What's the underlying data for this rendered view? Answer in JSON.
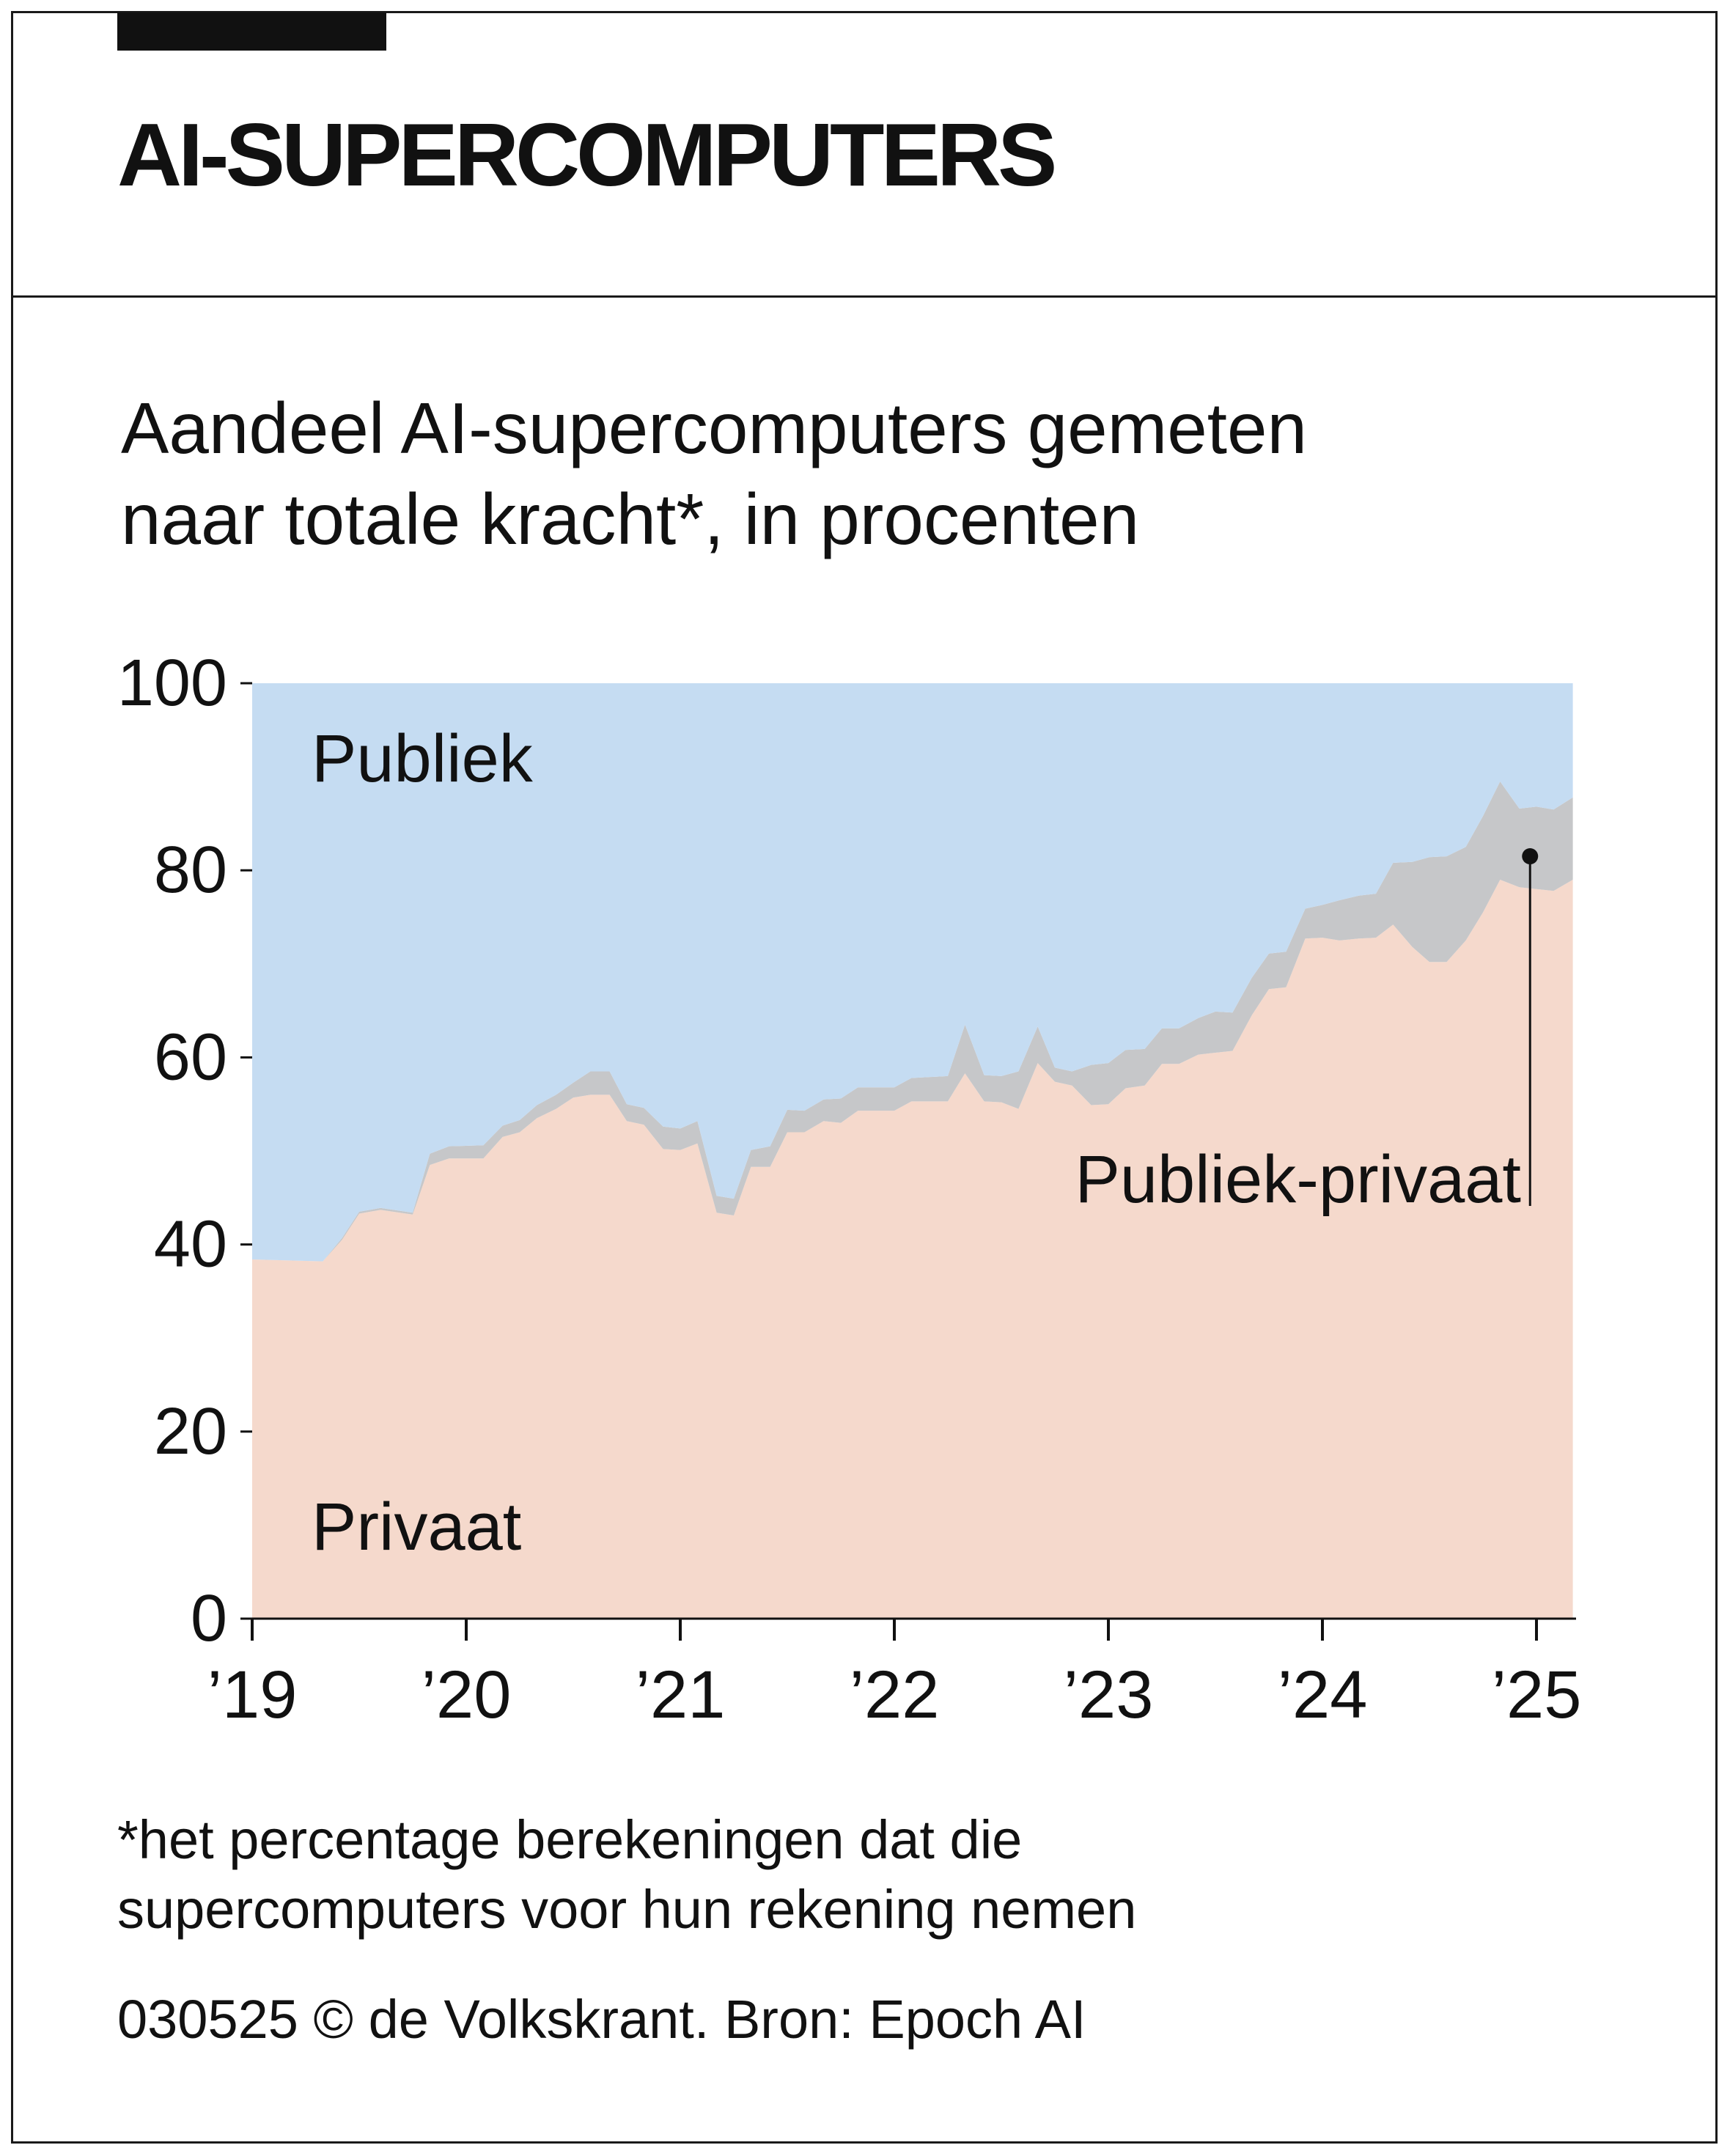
{
  "header": {
    "title": "AI-SUPERCOMPUTERS"
  },
  "subtitle": {
    "line1": "Aandeel AI-supercomputers gemeten",
    "line2": "naar totale kracht*, in procenten"
  },
  "footnote": {
    "line1": "*het percentage berekeningen dat die",
    "line2": "supercomputers voor hun rekening nemen"
  },
  "credit": "030525 © de Volkskrant. Bron: Epoch AI",
  "colors": {
    "publiek": "#c5dcf2",
    "publiek_privaat": "#c6c7c9",
    "privaat": "#f5d9cc",
    "text": "#111111"
  },
  "chart_data": {
    "type": "area",
    "stacked": true,
    "title": "Aandeel AI-supercomputers gemeten naar totale kracht*, in procenten",
    "ylim": [
      0,
      100
    ],
    "yticks": [
      0,
      20,
      40,
      60,
      80,
      100
    ],
    "xlim": [
      2019.0,
      2025.17
    ],
    "xticks": [
      {
        "value": 2019,
        "label": "’19"
      },
      {
        "value": 2020,
        "label": "’20"
      },
      {
        "value": 2021,
        "label": "’21"
      },
      {
        "value": 2022,
        "label": "’22"
      },
      {
        "value": 2023,
        "label": "’23"
      },
      {
        "value": 2024,
        "label": "’24"
      },
      {
        "value": 2025,
        "label": "’25"
      }
    ],
    "x": [
      2019.0,
      2019.33,
      2019.42,
      2019.5,
      2019.6,
      2019.75,
      2019.83,
      2019.92,
      2020.08,
      2020.17,
      2020.25,
      2020.33,
      2020.42,
      2020.5,
      2020.58,
      2020.67,
      2020.75,
      2020.83,
      2020.92,
      2021.0,
      2021.08,
      2021.17,
      2021.25,
      2021.33,
      2021.42,
      2021.5,
      2021.58,
      2021.67,
      2021.75,
      2021.83,
      2022.0,
      2022.08,
      2022.25,
      2022.33,
      2022.42,
      2022.5,
      2022.58,
      2022.67,
      2022.75,
      2022.83,
      2022.92,
      2023.0,
      2023.08,
      2023.17,
      2023.25,
      2023.33,
      2023.42,
      2023.5,
      2023.58,
      2023.67,
      2023.75,
      2023.83,
      2023.92,
      2024.0,
      2024.08,
      2024.17,
      2024.25,
      2024.33,
      2024.42,
      2024.5,
      2024.58,
      2024.67,
      2024.75,
      2024.83,
      2024.92,
      2025.0,
      2025.08,
      2025.17
    ],
    "series": [
      {
        "name": "Privaat",
        "color": "#f5d9cc",
        "values": [
          38.4,
          38.2,
          40.5,
          43.3,
          43.7,
          43.2,
          48.5,
          49.2,
          49.2,
          51.5,
          52.0,
          53.5,
          54.5,
          55.7,
          56.0,
          56.0,
          53.2,
          52.8,
          50.2,
          50.1,
          50.8,
          43.4,
          43.1,
          48.3,
          48.3,
          52.0,
          52.0,
          53.2,
          53.0,
          54.3,
          54.3,
          55.3,
          55.3,
          58.3,
          55.3,
          55.2,
          54.5,
          59.4,
          57.4,
          57.0,
          54.9,
          55.0,
          56.7,
          57.0,
          59.3,
          59.3,
          60.3,
          60.5,
          60.7,
          64.5,
          67.3,
          67.5,
          72.7,
          72.8,
          72.5,
          72.7,
          72.8,
          74.2,
          71.8,
          70.2,
          70.2,
          72.5,
          75.5,
          79.0,
          78.2,
          78.0,
          77.8,
          79.0
        ]
      },
      {
        "name": "Publiek-privaat",
        "color": "#c6c7c9",
        "values": [
          0.0,
          0.0,
          0.2,
          0.2,
          0.2,
          0.2,
          1.2,
          1.3,
          1.4,
          1.2,
          1.3,
          1.4,
          1.5,
          1.6,
          2.5,
          2.5,
          1.8,
          1.8,
          2.4,
          2.3,
          2.4,
          1.8,
          1.8,
          1.8,
          2.2,
          2.4,
          2.3,
          2.3,
          2.6,
          2.5,
          2.5,
          2.5,
          2.7,
          5.2,
          2.8,
          2.8,
          4.0,
          3.9,
          1.5,
          1.5,
          4.3,
          4.4,
          4.1,
          3.9,
          3.8,
          3.8,
          3.9,
          4.4,
          4.1,
          4.0,
          3.8,
          3.8,
          3.2,
          3.5,
          4.3,
          4.6,
          4.7,
          6.6,
          9.1,
          11.2,
          11.3,
          10.0,
          10.3,
          10.5,
          8.4,
          8.8,
          8.7,
          8.8
        ]
      },
      {
        "name": "Publiek",
        "color": "#c5dcf2",
        "values": [
          61.6,
          61.8,
          59.3,
          56.5,
          56.1,
          56.6,
          50.3,
          49.5,
          49.4,
          47.3,
          46.7,
          45.1,
          44.0,
          42.7,
          41.5,
          41.5,
          45.0,
          45.4,
          47.4,
          47.6,
          46.8,
          54.8,
          55.1,
          49.9,
          49.5,
          45.6,
          45.7,
          44.5,
          44.4,
          43.2,
          43.2,
          42.2,
          42.0,
          36.5,
          41.9,
          42.0,
          41.5,
          36.7,
          41.1,
          41.5,
          40.8,
          40.6,
          39.2,
          39.1,
          36.9,
          36.9,
          35.8,
          35.1,
          35.2,
          31.5,
          28.9,
          28.7,
          24.1,
          23.7,
          23.2,
          22.7,
          22.5,
          19.2,
          19.1,
          18.6,
          18.5,
          17.5,
          14.2,
          10.5,
          13.4,
          13.2,
          13.5,
          12.2
        ]
      }
    ],
    "area_labels": {
      "publiek": "Publiek",
      "privaat": "Privaat",
      "publiek_privaat": "Publiek-privaat"
    },
    "callout": {
      "x": 2024.97,
      "y": 81.5
    },
    "grid": false,
    "legend": "inline labels"
  }
}
